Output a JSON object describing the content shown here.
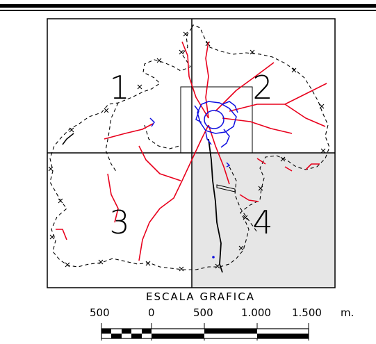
{
  "zones": [
    {
      "id": "1",
      "label": "1"
    },
    {
      "id": "2",
      "label": "2"
    },
    {
      "id": "3",
      "label": "3"
    },
    {
      "id": "4",
      "label": "4"
    }
  ],
  "highlighted_zone": "4",
  "scale": {
    "title": "ESCALA GRAFICA",
    "ticks": [
      "500",
      "0",
      "500",
      "1.000",
      "1.500"
    ],
    "unit": "m."
  },
  "colors": {
    "roads": "#e8001c",
    "urban": "#1010e0",
    "boundary": "#000000",
    "highlight_fill": "#e6e6e6"
  },
  "legend_icons": [
    "boundary-dashed-cross-line",
    "road-red-line",
    "urban-blue-line",
    "scale-bar"
  ]
}
